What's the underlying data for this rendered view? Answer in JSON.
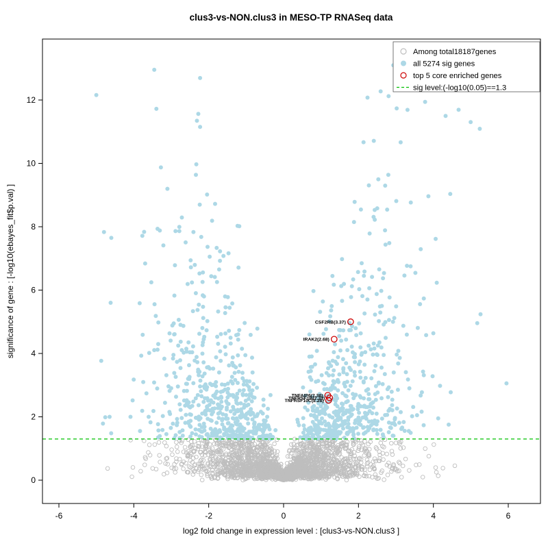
{
  "title": "clus3-vs-NON.clus3 in MESO-TP RNASeq data",
  "axes": {
    "x": {
      "label": "log2 fold change in expression level : [clus3-vs-NON.clus3 ]",
      "ticks": [
        -6,
        -4,
        -2,
        0,
        2,
        4,
        6
      ],
      "range": [
        -6.45,
        6.45
      ]
    },
    "y": {
      "label": "significance of gene : [-log10(ebayes_fit$p.val) ]",
      "ticks": [
        0,
        2,
        4,
        6,
        8,
        10,
        12
      ],
      "range": [
        -0.35,
        13.9
      ]
    }
  },
  "legend": {
    "items": [
      {
        "label": "Among total18187genes",
        "symbol": "open-circle",
        "color": "#BEBEBE"
      },
      {
        "label": "all 5274 sig genes",
        "symbol": "filled-circle",
        "color": "#ADD8E6"
      },
      {
        "label": "top 5 core enriched genes",
        "symbol": "open-circle",
        "color": "#CC0000"
      },
      {
        "label": "sig level:(-log10(0.05)==1.3",
        "symbol": "dashed-line",
        "color": "#00C000"
      }
    ]
  },
  "colors": {
    "nonsig": "#BEBEBE",
    "sig": "#ADD8E6",
    "enriched": "#CC0000",
    "sigline": "#00C000",
    "axis": "#000000"
  },
  "chart_data": {
    "type": "scatter",
    "title": "clus3-vs-NON.clus3 in MESO-TP RNASeq data",
    "xlabel": "log2 fold change in expression level : [clus3-vs-NON.clus3 ]",
    "ylabel": "significance of gene : [-log10(ebayes_fit$p.val) ]",
    "xlim": [
      -6.45,
      6.45
    ],
    "ylim": [
      -0.35,
      13.9
    ],
    "threshold_y": 1.3,
    "total_genes": 18187,
    "sig_genes": 5274,
    "series": [
      {
        "name": "Among total18187genes",
        "style": "open-gray",
        "description": "non-significant genes, funnel centered at x=0 below y=1.3"
      },
      {
        "name": "all 5274 sig genes",
        "style": "filled-lightblue",
        "description": "significant genes, two dense wings above y=1.3"
      },
      {
        "name": "top 5 core enriched genes",
        "style": "open-red",
        "points": [
          {
            "label": "CSF2RB(3.37)",
            "gene": "CSF2RB",
            "x": 1.79,
            "y": 5.0
          },
          {
            "label": "IRAK2(2.68)",
            "gene": "IRAK2",
            "x": 1.35,
            "y": 4.45
          },
          {
            "label": "TNFAIP6(2.36)",
            "gene": "TNFAIP6",
            "x": 1.18,
            "y": 2.68
          },
          {
            "label": "TNFRSF1B(2.33)",
            "gene": "TNFRSF1B",
            "x": 1.23,
            "y": 2.6
          },
          {
            "label": "TNFRSF10C(2.28)",
            "gene": "TNFRSF10C",
            "x": 1.2,
            "y": 2.52
          }
        ]
      }
    ],
    "sig_line": {
      "y": 1.3,
      "style": "dashed",
      "color": "#00C000",
      "label": "sig level:(-log10(0.05)==1.3"
    },
    "generation": {
      "seed": 42,
      "n_points": 3600,
      "x_sigma": 1.55,
      "y_scale": 1.0,
      "jitter": 0.12,
      "y_cap": 13.2
    }
  }
}
